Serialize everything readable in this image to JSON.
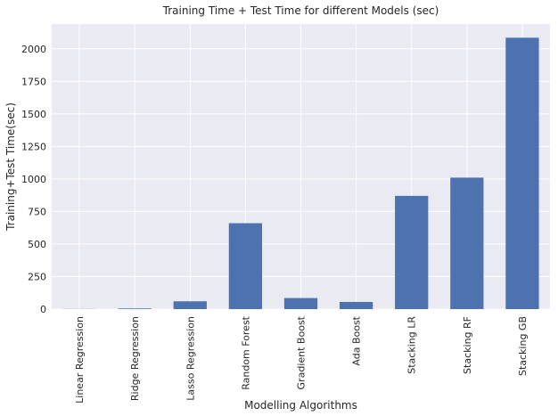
{
  "chart_data": {
    "type": "bar",
    "title": "Training Time + Test Time for different Models (sec)",
    "xlabel": "Modelling Algorithms",
    "ylabel": "Training+Test Time(sec)",
    "categories": [
      "Linear Regression",
      "Ridge Regression",
      "Lasso Regression",
      "Random Forest",
      "Gradient Boost",
      "Ada Boost",
      "Stacking LR",
      "Stacking RF",
      "Stacking GB"
    ],
    "values": [
      1,
      5,
      60,
      660,
      85,
      55,
      870,
      1010,
      2085
    ],
    "ylim": [
      0,
      2190
    ],
    "yticks": [
      0,
      250,
      500,
      750,
      1000,
      1250,
      1500,
      1750,
      2000
    ],
    "ytick_labels": [
      "0",
      "250",
      "500",
      "750",
      "1000",
      "1250",
      "1500",
      "1750",
      "2000"
    ],
    "grid": true,
    "colors": {
      "bar": "#4c72b0",
      "background": "#eaeaf2",
      "grid": "#ffffff"
    }
  }
}
